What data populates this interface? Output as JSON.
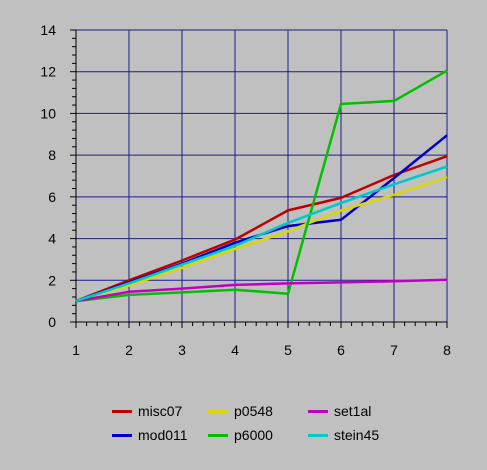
{
  "chart_data": {
    "type": "line",
    "title": "",
    "xlabel": "",
    "ylabel": "",
    "x": [
      1,
      2,
      3,
      4,
      5,
      6,
      7,
      8
    ],
    "xlim": [
      1,
      8
    ],
    "ylim": [
      0,
      14
    ],
    "x_ticks": [
      1,
      2,
      3,
      4,
      5,
      6,
      7,
      8
    ],
    "y_ticks": [
      0,
      2,
      4,
      6,
      8,
      10,
      12,
      14
    ],
    "grid": true,
    "grid_color": "#1c1c8c",
    "background": "#c0c0c0",
    "legend_position": "bottom",
    "series": [
      {
        "name": "misc07",
        "color": "#c00000",
        "values": [
          1.0,
          2.0,
          2.95,
          3.95,
          5.35,
          5.95,
          7.05,
          7.95
        ]
      },
      {
        "name": "mod011",
        "color": "#0000c8",
        "values": [
          1.0,
          1.9,
          2.8,
          3.8,
          4.6,
          4.9,
          6.9,
          8.95
        ]
      },
      {
        "name": "p0548",
        "color": "#d8d800",
        "values": [
          1.0,
          1.75,
          2.6,
          3.5,
          4.35,
          5.35,
          6.1,
          6.95
        ]
      },
      {
        "name": "p6000",
        "color": "#00c000",
        "values": [
          1.0,
          1.3,
          1.42,
          1.55,
          1.35,
          10.45,
          10.6,
          12.05
        ]
      },
      {
        "name": "set1al",
        "color": "#c000c0",
        "values": [
          1.0,
          1.45,
          1.6,
          1.78,
          1.85,
          1.9,
          1.95,
          2.03
        ]
      },
      {
        "name": "stein45",
        "color": "#00c8c8",
        "values": [
          1.0,
          1.85,
          2.75,
          3.65,
          4.75,
          5.7,
          6.6,
          7.45
        ]
      }
    ]
  }
}
